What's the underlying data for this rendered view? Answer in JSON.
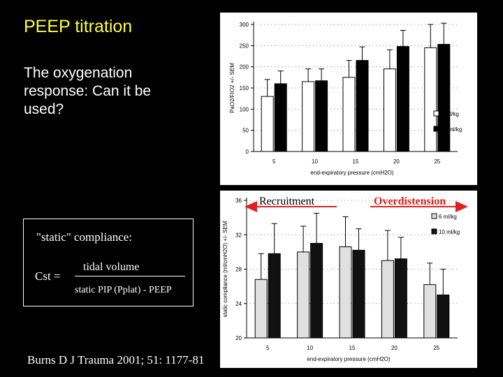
{
  "slide": {
    "title": "PEEP titration",
    "subtitle": "The oxygenation response: Can it be used?"
  },
  "formula": {
    "label": "\"static\" compliance:",
    "lhs": "Cst =",
    "numerator": "tidal volume",
    "denominator": "static PIP (Pplat) - PEEP"
  },
  "citation": "Burns D   J Trauma 2001; 51: 1177-81",
  "annotations": {
    "recruitment": "Recruitment",
    "overdistension": "Overdistension",
    "arrow_color": "#e02020"
  },
  "chart_data": [
    {
      "type": "bar",
      "categories": [
        "5",
        "10",
        "15",
        "20",
        "25"
      ],
      "series": [
        {
          "name": "6 ml/kg",
          "values": [
            130,
            165,
            175,
            195,
            245
          ],
          "errors": [
            40,
            30,
            40,
            45,
            55
          ],
          "color": "#ffffff"
        },
        {
          "name": "10 ml/kg",
          "values": [
            160,
            167,
            215,
            248,
            253
          ],
          "errors": [
            30,
            28,
            32,
            38,
            50
          ],
          "color": "#000000"
        }
      ],
      "xlabel": "end-expiratory pressure (cmH2O)",
      "ylabel": "PaO2/FIO2 +/- SEM",
      "ylim": [
        0,
        300
      ],
      "yticks": [
        0,
        50,
        100,
        150,
        200,
        250,
        300
      ],
      "grid": "dotted horizontal",
      "legend": "right"
    },
    {
      "type": "bar",
      "categories": [
        "5",
        "10",
        "15",
        "20",
        "25"
      ],
      "series": [
        {
          "name": "6 ml/kg",
          "values": [
            26.8,
            30.0,
            30.6,
            29.0,
            26.2
          ],
          "errors": [
            3.0,
            3.0,
            3.5,
            3.5,
            2.5
          ],
          "color": "#e0e0e0"
        },
        {
          "name": "10 ml/kg",
          "values": [
            29.8,
            31.0,
            30.2,
            29.2,
            25.0
          ],
          "errors": [
            3.5,
            3.5,
            2.5,
            2.5,
            3.0
          ],
          "color": "#111111"
        }
      ],
      "xlabel": "end-expiratory pressure (cmH2O)",
      "ylabel": "static compliance (ml/cmH2O) +/- SEM",
      "ylim": [
        20,
        36
      ],
      "yticks": [
        20,
        24,
        28,
        32,
        36
      ],
      "grid": "dotted horizontal",
      "legend": "top-right"
    }
  ]
}
